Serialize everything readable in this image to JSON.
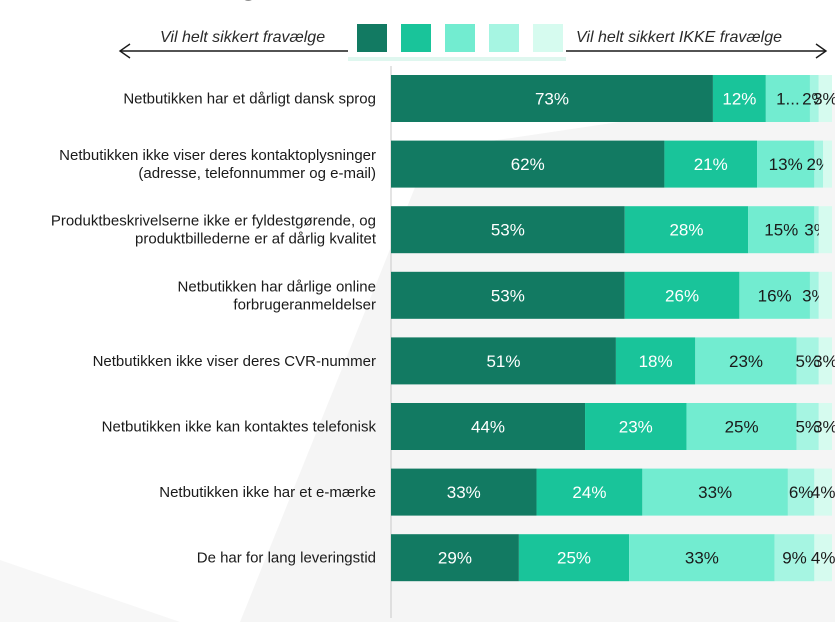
{
  "legend": {
    "left_text": "Vil helt sikkert fravælge",
    "right_text": "Vil helt sikkert IKKE fravælge",
    "swatch_colors": [
      "#127a62",
      "#19c49a",
      "#72ecd0",
      "#a6f5e2",
      "#d6fbef"
    ]
  },
  "chart_data": {
    "type": "bar",
    "orientation": "horizontal",
    "stacked": true,
    "xlim": [
      0,
      100
    ],
    "categories": [
      [
        "Netbutikken har et dårligt dansk sprog"
      ],
      [
        "Netbutikken ikke viser deres kontaktoplysninger",
        "(adresse, telefonnummer og e-mail)"
      ],
      [
        "Produktbeskrivelserne ikke er fyldestgørende, og",
        "produktbillederne er af dårlig kvalitet"
      ],
      [
        "Netbutikken har dårlige online",
        "forbrugeranmeldelser"
      ],
      [
        "Netbutikken ikke viser deres CVR-nummer"
      ],
      [
        "Netbutikken ikke kan kontaktes telefonisk"
      ],
      [
        "Netbutikken ikke har et e-mærke"
      ],
      [
        "De har for lang leveringstid"
      ]
    ],
    "series": [
      {
        "color": "#127a62",
        "values": [
          73,
          62,
          53,
          53,
          51,
          44,
          33,
          29
        ]
      },
      {
        "color": "#19c49a",
        "values": [
          12,
          21,
          28,
          26,
          18,
          23,
          24,
          25
        ]
      },
      {
        "color": "#72ecd0",
        "values": [
          10,
          13,
          15,
          16,
          23,
          25,
          33,
          33
        ]
      },
      {
        "color": "#a6f5e2",
        "values": [
          2,
          2,
          1,
          2,
          5,
          5,
          6,
          9
        ]
      },
      {
        "color": "#d6fbef",
        "values": [
          3,
          2,
          3,
          3,
          3,
          3,
          4,
          4
        ]
      }
    ],
    "value_labels": [
      [
        "73%",
        "12%",
        "1...",
        "2%",
        "3%"
      ],
      [
        "62%",
        "21%",
        "13%",
        "2%",
        ""
      ],
      [
        "53%",
        "28%",
        "15%",
        "3%",
        ""
      ],
      [
        "53%",
        "26%",
        "16%",
        "3%",
        ""
      ],
      [
        "51%",
        "18%",
        "23%",
        "5%",
        "3%"
      ],
      [
        "44%",
        "23%",
        "25%",
        "5%",
        "3%"
      ],
      [
        "33%",
        "24%",
        "33%",
        "6%",
        "4%"
      ],
      [
        "29%",
        "25%",
        "33%",
        "9%",
        "4%"
      ]
    ],
    "label_colors": [
      "#ffffff",
      "#ffffff",
      "#1a1a1a",
      "#1a1a1a",
      "#1a1a1a"
    ]
  }
}
